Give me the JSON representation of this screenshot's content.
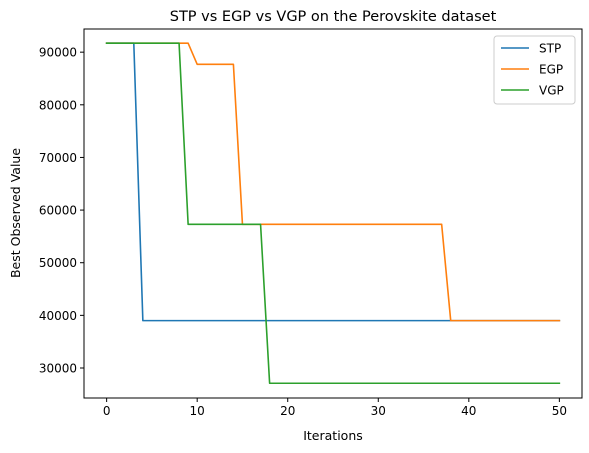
{
  "chart_data": {
    "type": "line",
    "title": "STP vs EGP vs VGP on the Perovskite dataset",
    "xlabel": "Iterations",
    "ylabel": "Best Observed Value",
    "xlim": [
      -2.5,
      52.5
    ],
    "ylim": [
      24300,
      94400
    ],
    "xticks": [
      0,
      10,
      20,
      30,
      40,
      50
    ],
    "yticks": [
      30000,
      40000,
      50000,
      60000,
      70000,
      80000,
      90000
    ],
    "grid": false,
    "legend": {
      "position": "top-right",
      "entries": [
        "STP",
        "EGP",
        "VGP"
      ]
    },
    "series": [
      {
        "name": "STP",
        "color": "#1f77b4",
        "x": [
          0,
          1,
          2,
          3,
          4,
          5,
          6,
          7,
          8,
          9,
          10,
          11,
          12,
          13,
          14,
          15,
          16,
          17,
          18,
          19,
          20,
          21,
          22,
          23,
          24,
          25,
          26,
          27,
          28,
          29,
          30,
          31,
          32,
          33,
          34,
          35,
          36,
          37,
          38,
          39,
          40,
          41,
          42,
          43,
          44,
          45,
          46,
          47,
          48,
          49,
          50
        ],
        "y": [
          91700,
          91700,
          91700,
          91700,
          39000,
          39000,
          39000,
          39000,
          39000,
          39000,
          39000,
          39000,
          39000,
          39000,
          39000,
          39000,
          39000,
          39000,
          39000,
          39000,
          39000,
          39000,
          39000,
          39000,
          39000,
          39000,
          39000,
          39000,
          39000,
          39000,
          39000,
          39000,
          39000,
          39000,
          39000,
          39000,
          39000,
          39000,
          39000,
          39000,
          39000,
          39000,
          39000,
          39000,
          39000,
          39000,
          39000,
          39000,
          39000,
          39000,
          39000
        ]
      },
      {
        "name": "EGP",
        "color": "#ff7f0e",
        "x": [
          0,
          1,
          2,
          3,
          4,
          5,
          6,
          7,
          8,
          9,
          10,
          11,
          12,
          13,
          14,
          15,
          16,
          17,
          18,
          19,
          20,
          21,
          22,
          23,
          24,
          25,
          26,
          27,
          28,
          29,
          30,
          31,
          32,
          33,
          34,
          35,
          36,
          37,
          38,
          39,
          40,
          41,
          42,
          43,
          44,
          45,
          46,
          47,
          48,
          49,
          50
        ],
        "y": [
          91700,
          91700,
          91700,
          91700,
          91700,
          91700,
          91700,
          91700,
          91700,
          91700,
          87700,
          87700,
          87700,
          87700,
          87700,
          57300,
          57300,
          57300,
          57300,
          57300,
          57300,
          57300,
          57300,
          57300,
          57300,
          57300,
          57300,
          57300,
          57300,
          57300,
          57300,
          57300,
          57300,
          57300,
          57300,
          57300,
          57300,
          57300,
          39000,
          39000,
          39000,
          39000,
          39000,
          39000,
          39000,
          39000,
          39000,
          39000,
          39000,
          39000,
          39000
        ]
      },
      {
        "name": "VGP",
        "color": "#2ca02c",
        "x": [
          0,
          1,
          2,
          3,
          4,
          5,
          6,
          7,
          8,
          9,
          10,
          11,
          12,
          13,
          14,
          15,
          16,
          17,
          18,
          19,
          20,
          21,
          22,
          23,
          24,
          25,
          26,
          27,
          28,
          29,
          30,
          31,
          32,
          33,
          34,
          35,
          36,
          37,
          38,
          39,
          40,
          41,
          42,
          43,
          44,
          45,
          46,
          47,
          48,
          49,
          50
        ],
        "y": [
          91700,
          91700,
          91700,
          91700,
          91700,
          91700,
          91700,
          91700,
          91700,
          57300,
          57300,
          57300,
          57300,
          57300,
          57300,
          57300,
          57300,
          57300,
          27100,
          27100,
          27100,
          27100,
          27100,
          27100,
          27100,
          27100,
          27100,
          27100,
          27100,
          27100,
          27100,
          27100,
          27100,
          27100,
          27100,
          27100,
          27100,
          27100,
          27100,
          27100,
          27100,
          27100,
          27100,
          27100,
          27100,
          27100,
          27100,
          27100,
          27100,
          27100,
          27100
        ]
      }
    ]
  }
}
